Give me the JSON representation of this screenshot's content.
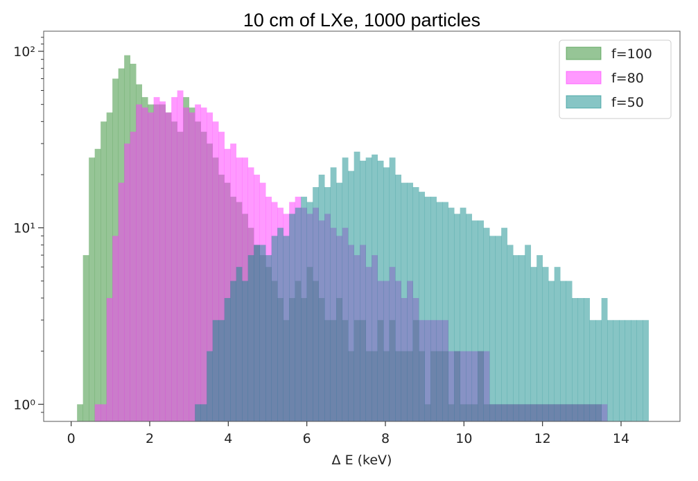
{
  "chart_data": {
    "type": "histogram",
    "title": "10 cm of LXe, 1000 particles",
    "xlabel": "Δ E (keV)",
    "ylabel": "",
    "xlim": [
      -0.7,
      15.5
    ],
    "ylim": [
      0.8,
      130
    ],
    "yscale": "log",
    "x_ticks": [
      0,
      2,
      4,
      6,
      8,
      10,
      12,
      14
    ],
    "y_ticks": [
      {
        "value": 1,
        "label": "10⁰"
      },
      {
        "value": 10,
        "label": "10¹"
      },
      {
        "value": 100,
        "label": "10²"
      }
    ],
    "grid": false,
    "legend_position": "top-right",
    "bin_start": 0.0,
    "bin_width": 0.15,
    "series": [
      {
        "name": "f=100",
        "color": "#2e8b2e",
        "counts": [
          0,
          1,
          7,
          25,
          28,
          40,
          45,
          70,
          80,
          95,
          85,
          65,
          55,
          50,
          50,
          50,
          45,
          40,
          35,
          55,
          48,
          40,
          35,
          30,
          25,
          20,
          18,
          15,
          14,
          12,
          10,
          8,
          7,
          6,
          5,
          4,
          3,
          4,
          5,
          4,
          6,
          5,
          4,
          3,
          3,
          4,
          3,
          2,
          3,
          3,
          2,
          2,
          3,
          2,
          3,
          2,
          2,
          2,
          3,
          2,
          1,
          2,
          2,
          2,
          1,
          2,
          1,
          1,
          1,
          2,
          1,
          1,
          1,
          1,
          1,
          1,
          1,
          1,
          1,
          1,
          1,
          1,
          1,
          1,
          1,
          1,
          1,
          1,
          1,
          1,
          0,
          0,
          0,
          0,
          0,
          0,
          0,
          0,
          0,
          0
        ]
      },
      {
        "name": "f=80",
        "color": "#ff33ff",
        "counts": [
          0,
          0,
          0,
          0,
          1,
          1,
          4,
          9,
          18,
          30,
          35,
          50,
          48,
          45,
          55,
          52,
          45,
          55,
          60,
          48,
          45,
          50,
          48,
          45,
          40,
          35,
          28,
          30,
          25,
          25,
          22,
          20,
          18,
          15,
          14,
          13,
          12,
          14,
          15,
          13,
          12,
          13,
          11,
          12,
          10,
          9,
          10,
          8,
          7,
          8,
          6,
          7,
          5,
          5,
          6,
          5,
          4,
          5,
          4,
          3,
          3,
          3,
          3,
          3,
          2,
          2,
          2,
          2,
          2,
          2,
          2,
          1,
          1,
          1,
          1,
          1,
          1,
          1,
          1,
          1,
          1,
          1,
          1,
          1,
          1,
          1,
          1,
          1,
          1,
          1,
          1,
          0,
          0,
          0,
          0,
          0,
          0,
          0,
          0,
          0
        ]
      },
      {
        "name": "f=50",
        "color": "#108b8b",
        "counts": [
          0,
          0,
          0,
          0,
          0,
          0,
          0,
          0,
          0,
          0,
          0,
          0,
          0,
          0,
          0,
          0,
          0,
          0,
          0,
          0,
          0,
          1,
          1,
          2,
          3,
          3,
          4,
          5,
          6,
          5,
          7,
          8,
          8,
          7,
          9,
          10,
          9,
          12,
          13,
          15,
          14,
          17,
          20,
          17,
          22,
          18,
          25,
          21,
          27,
          24,
          25,
          26,
          24,
          22,
          25,
          20,
          18,
          18,
          17,
          16,
          15,
          15,
          14,
          14,
          13,
          12,
          13,
          12,
          11,
          11,
          10,
          9,
          9,
          10,
          8,
          7,
          7,
          8,
          6,
          7,
          6,
          5,
          6,
          5,
          5,
          4,
          4,
          4,
          3,
          3,
          4,
          3,
          3,
          3,
          3,
          3,
          3,
          3,
          0,
          0
        ]
      }
    ]
  }
}
